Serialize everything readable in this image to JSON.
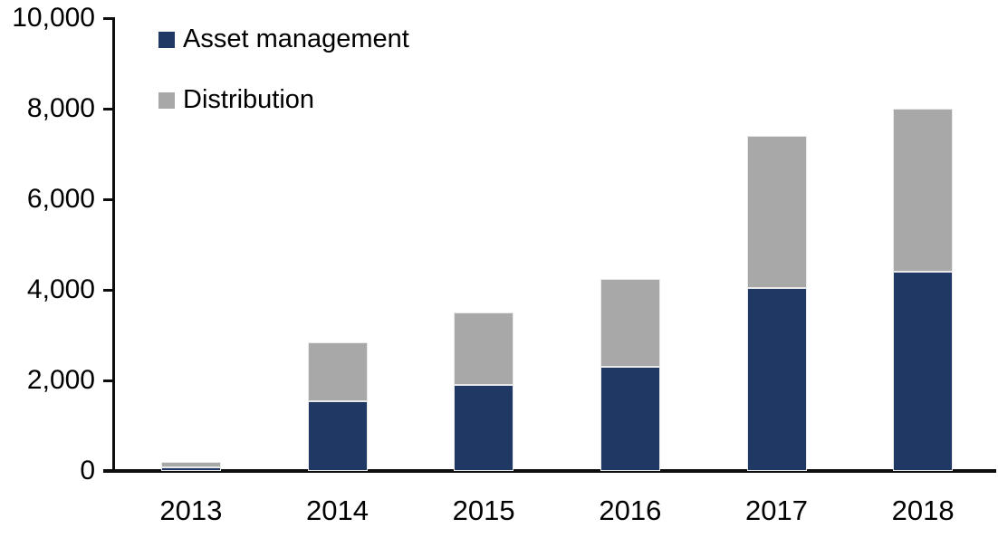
{
  "chart_data": {
    "type": "bar",
    "stacked": true,
    "title": "",
    "xlabel": "",
    "ylabel": "",
    "categories": [
      "2013",
      "2014",
      "2015",
      "2016",
      "2017",
      "2018"
    ],
    "series": [
      {
        "name": "Asset management",
        "color": "#1F3864",
        "values": [
          90,
          1550,
          1900,
          2300,
          4050,
          4400
        ]
      },
      {
        "name": "Distribution",
        "color": "#A8A8A8",
        "values": [
          110,
          1300,
          1600,
          1950,
          3350,
          3600
        ]
      }
    ],
    "totals": [
      200,
      2850,
      3500,
      4250,
      7400,
      8000
    ],
    "ylim": [
      0,
      10000
    ],
    "yticks": [
      0,
      2000,
      4000,
      6000,
      8000,
      10000
    ],
    "ytick_labels": [
      "0",
      "2,000",
      "4,000",
      "6,000",
      "8,000",
      "10,000"
    ],
    "grid": false,
    "legend_position": "top-left",
    "axis_color": "#0d0d0d",
    "background_color": "#ffffff"
  }
}
